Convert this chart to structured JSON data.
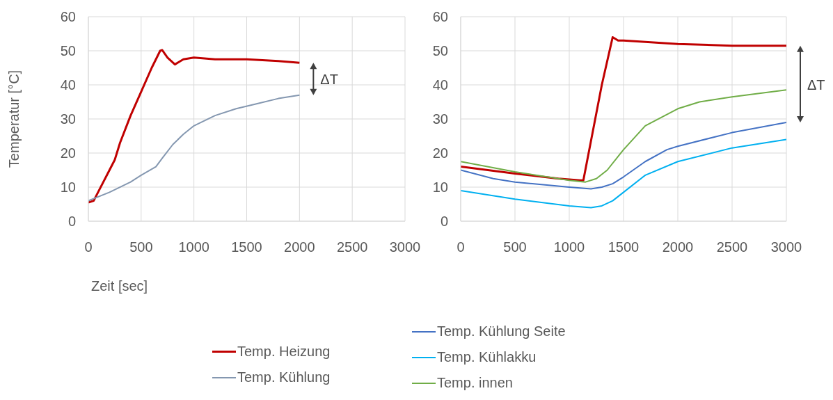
{
  "chart_data": [
    {
      "type": "line",
      "ylabel": "Temperatur [°C]",
      "xlabel": "Zeit [sec]",
      "annotations": [
        "ΔT"
      ],
      "xlim": [
        0,
        3000
      ],
      "xticks": [
        0,
        500,
        1000,
        1500,
        2000,
        2500,
        3000
      ],
      "ylim": [
        0,
        60
      ],
      "yticks": [
        0,
        10,
        20,
        30,
        40,
        50,
        60
      ],
      "grid": true,
      "legend": "bottom",
      "marker": "none",
      "line_style": "solid",
      "series": [
        {
          "name": "Temp. Heizung",
          "color": "#c00000",
          "x": [
            0,
            50,
            100,
            200,
            250,
            300,
            400,
            500,
            600,
            680,
            700,
            750,
            820,
            900,
            1000,
            1200,
            1500,
            1800,
            2000
          ],
          "values": [
            5.5,
            6,
            9,
            15,
            18,
            23,
            31,
            38,
            45,
            50,
            50.2,
            48,
            46,
            47.5,
            48,
            47.5,
            47.5,
            47,
            46.5
          ]
        },
        {
          "name": "Temp. Kühlung",
          "color": "#8497b0",
          "x": [
            0,
            200,
            400,
            500,
            640,
            700,
            800,
            900,
            1000,
            1200,
            1400,
            1600,
            1800,
            2000
          ],
          "values": [
            6,
            8.5,
            11.5,
            13.5,
            16,
            18.5,
            22.5,
            25.5,
            28,
            31,
            33,
            34.5,
            36,
            37
          ]
        }
      ]
    },
    {
      "type": "line",
      "annotations": [
        "ΔT"
      ],
      "xlim": [
        0,
        3000
      ],
      "xticks": [
        0,
        500,
        1000,
        1500,
        2000,
        2500,
        3000
      ],
      "ylim": [
        0,
        60
      ],
      "yticks": [
        0,
        10,
        20,
        30,
        40,
        50,
        60
      ],
      "grid": true,
      "legend": "bottom",
      "marker": "none",
      "line_style": "solid",
      "series": [
        {
          "color": "#c00000",
          "x": [
            0,
            500,
            900,
            1100,
            1130,
            1300,
            1400,
            1450,
            1500,
            2000,
            2500,
            3000
          ],
          "values": [
            16,
            14,
            12.5,
            12,
            12,
            40,
            54,
            53,
            53,
            52,
            51.5,
            51.5
          ]
        },
        {
          "name": "Temp. Kühlung Seite",
          "color": "#4472c4",
          "x": [
            0,
            300,
            500,
            1000,
            1200,
            1300,
            1400,
            1500,
            1700,
            1900,
            2000,
            2500,
            3000
          ],
          "values": [
            15,
            12.5,
            11.5,
            10,
            9.5,
            10,
            11,
            13,
            17.5,
            21,
            22,
            26,
            29
          ]
        },
        {
          "name": "Temp. Kühlakku",
          "color": "#00b0f0",
          "x": [
            0,
            500,
            1000,
            1200,
            1300,
            1400,
            1500,
            1700,
            2000,
            2500,
            3000
          ],
          "values": [
            9,
            6.5,
            4.5,
            4,
            4.5,
            6,
            8.5,
            13.5,
            17.5,
            21.5,
            24
          ]
        },
        {
          "name": "Temp. innen",
          "color": "#70ad47",
          "x": [
            0,
            500,
            1000,
            1150,
            1250,
            1350,
            1450,
            1500,
            1700,
            2000,
            2200,
            2500,
            3000
          ],
          "values": [
            17.5,
            14.5,
            12,
            11.5,
            12.5,
            15,
            19,
            21,
            28,
            33,
            35,
            36.5,
            38.5
          ]
        }
      ]
    }
  ]
}
